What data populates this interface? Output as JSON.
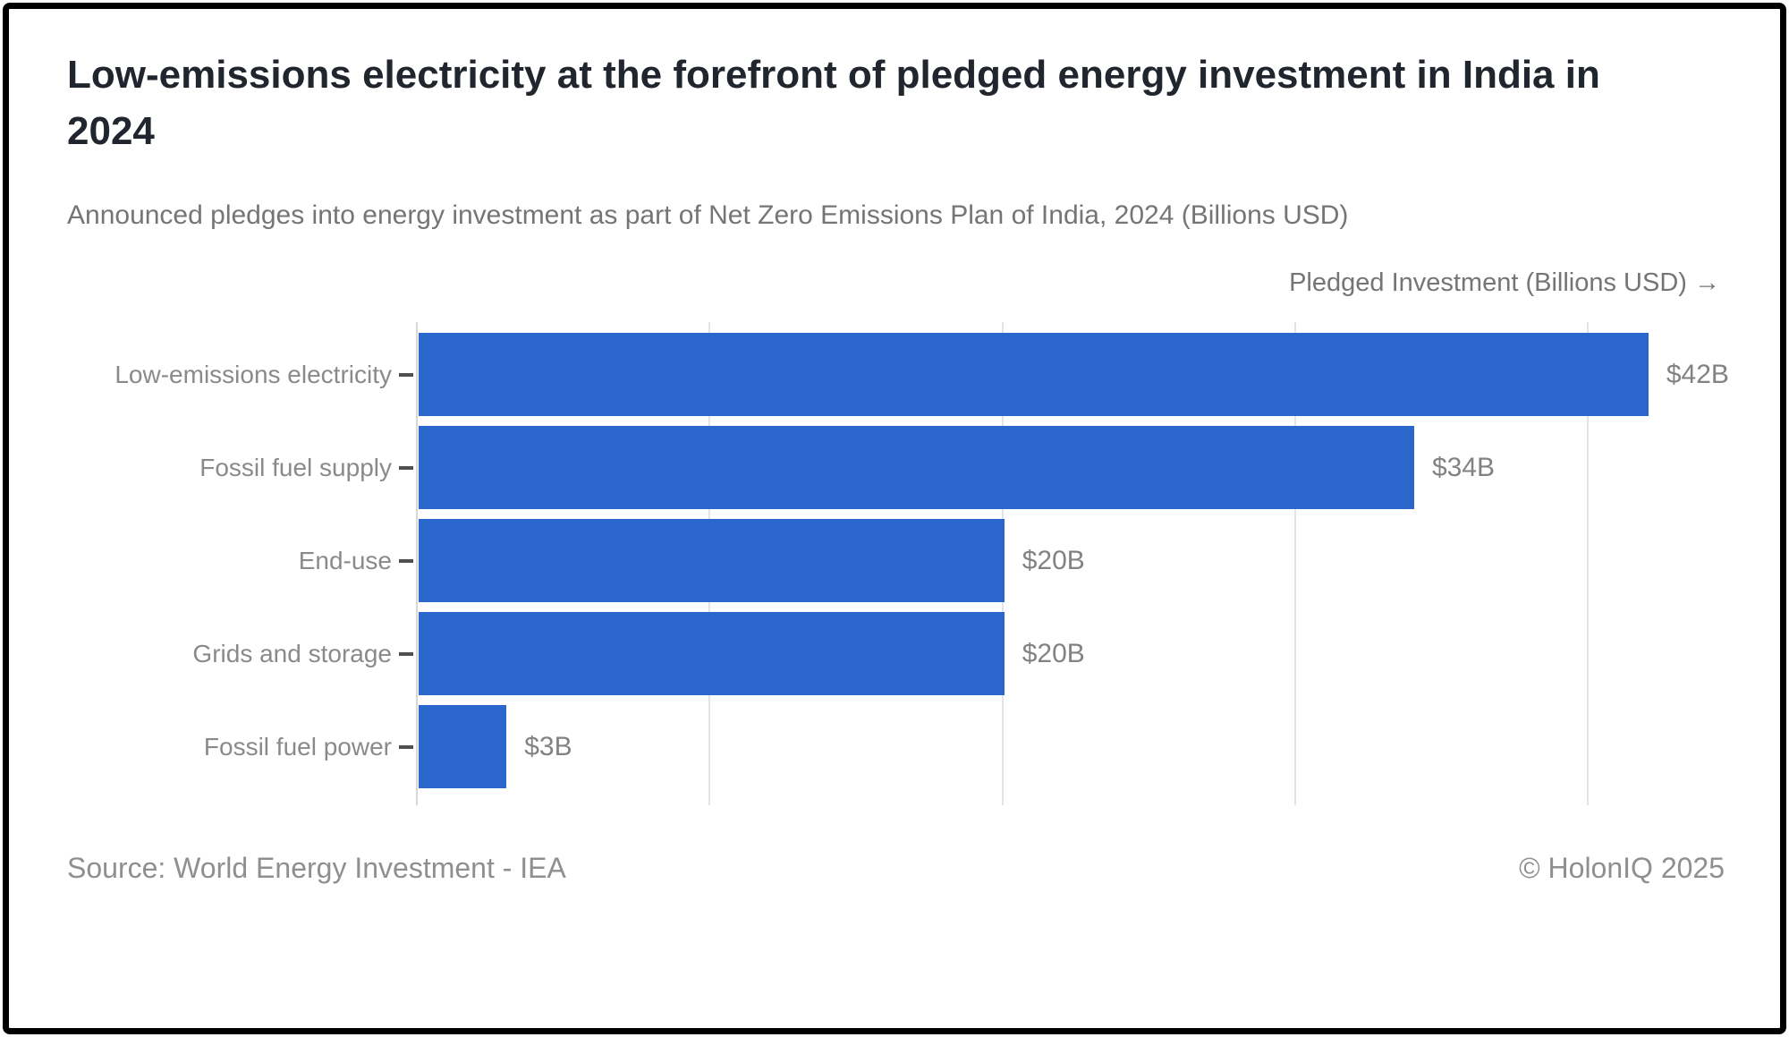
{
  "chart_data": {
    "type": "bar",
    "orientation": "horizontal",
    "title": "Low-emissions electricity at the forefront of pledged energy investment in India in 2024",
    "subtitle": "Announced pledges into energy investment as part of Net Zero Emissions Plan of India, 2024 (Billions USD)",
    "xlabel": "Pledged Investment (Billions USD) →",
    "ylabel": "",
    "categories": [
      "Low-emissions electricity",
      "Fossil fuel supply",
      "End-use",
      "Grids and storage",
      "Fossil fuel power"
    ],
    "values": [
      42,
      34,
      20,
      20,
      3
    ],
    "value_labels": [
      "$42B",
      "$34B",
      "$20B",
      "$20B",
      "$3B"
    ],
    "xlim": [
      0,
      44.6
    ],
    "gridline_values": [
      0,
      10,
      20,
      30,
      40
    ],
    "grid": true,
    "legend": "none",
    "bar_color": "#2a66cb"
  },
  "footer": {
    "source": "Source: World Energy Investment - IEA",
    "copyright": "© HolonIQ 2025"
  },
  "colors": {
    "bar": "#2a66cb",
    "title_text": "#20252e",
    "muted_text": "#757575",
    "label_text": "#8a8a8a",
    "gridline": "#e4e4e4",
    "border": "#000000"
  }
}
